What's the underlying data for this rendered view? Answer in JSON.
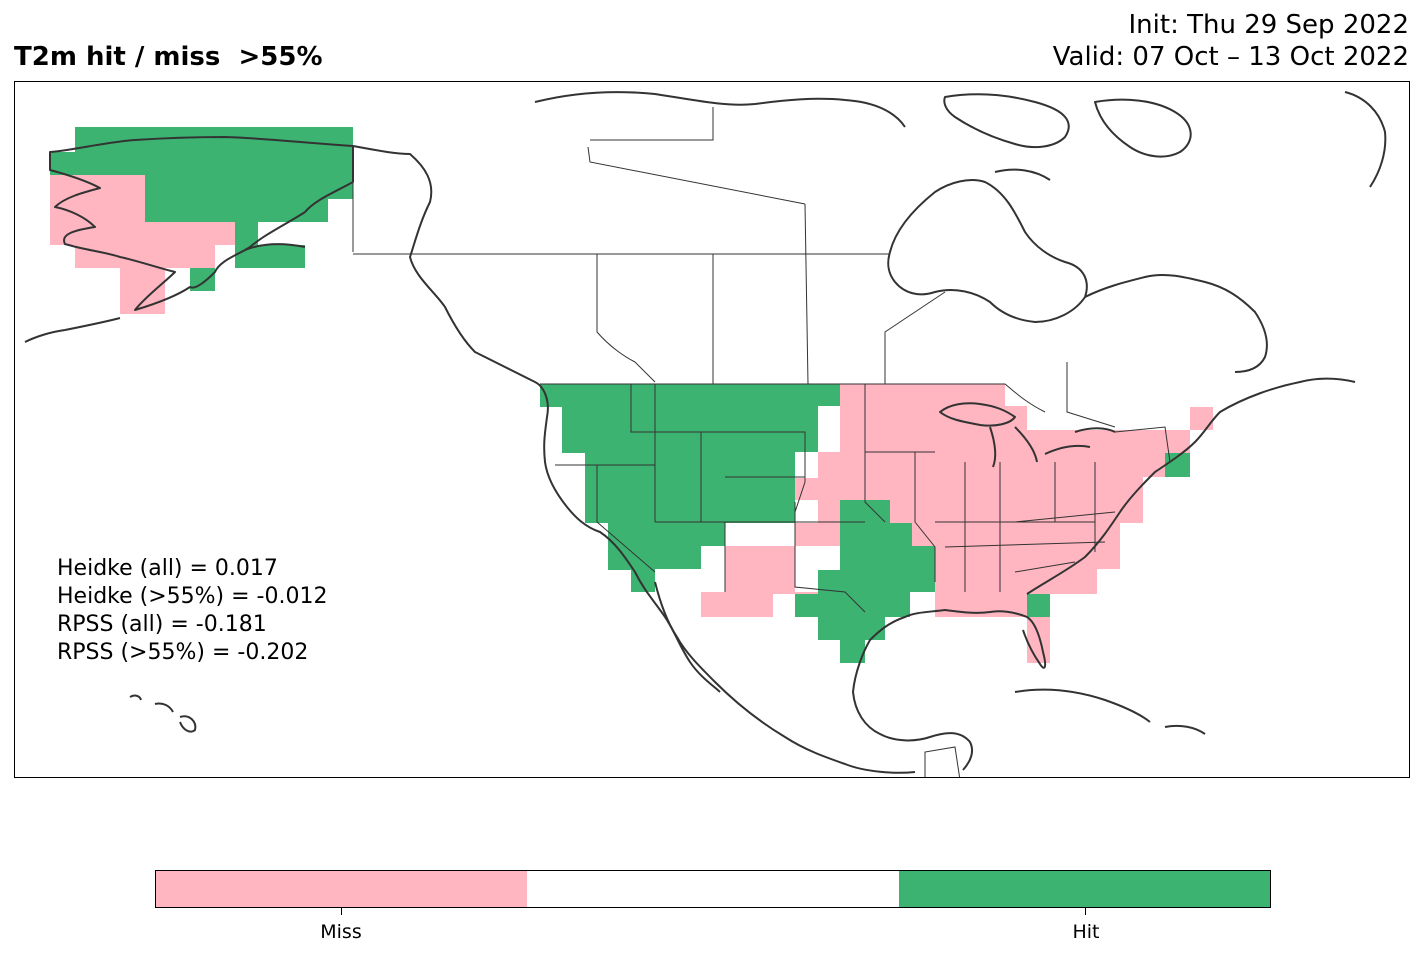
{
  "header": {
    "title": "T2m hit / miss  >55%",
    "init": "Init: Thu 29 Sep 2022",
    "valid": "Valid: 07 Oct – 13 Oct 2022"
  },
  "colors": {
    "miss": "#ffb6c1",
    "none": "#ffffff",
    "hit": "#3cb371",
    "coast": "#333333"
  },
  "scores": [
    "Heidke (all) = 0.017",
    "Heidke (>55%) = -0.012",
    "RPSS (all) = -0.181",
    "RPSS (>55%) = -0.202"
  ],
  "legend": {
    "miss_label": "Miss",
    "hit_label": "Hit"
  }
}
